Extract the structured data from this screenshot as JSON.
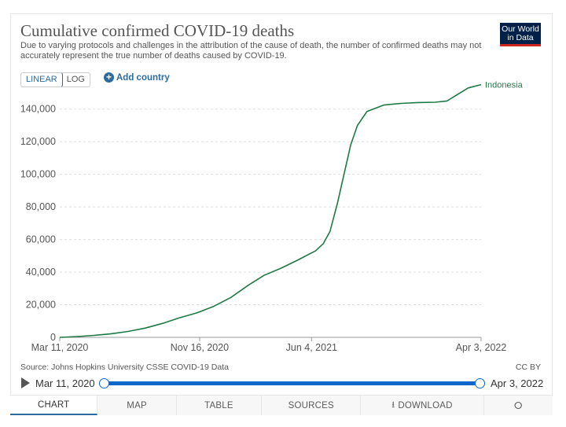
{
  "header": {
    "title": "Cumulative confirmed COVID-19 deaths",
    "subtitle": "Due to varying protocols and challenges in the attribution of the cause of death, the number of confirmed deaths may not accurately represent the true number of deaths caused by COVID-19.",
    "logo_line1": "Our World",
    "logo_line2": "in Data"
  },
  "controls": {
    "linear_label": "LINEAR",
    "log_label": "LOG",
    "add_country_label": "Add country"
  },
  "footer": {
    "source": "Source: Johns Hopkins University CSSE COVID-19 Data",
    "license": "CC BY"
  },
  "timeline": {
    "start": "Mar 11, 2020",
    "end": "Apr 3, 2022"
  },
  "tabs": {
    "chart": "CHART",
    "map": "MAP",
    "table": "TABLE",
    "sources": "SOURCES",
    "download": "DOWNLOAD"
  },
  "colors": {
    "series": "#1e7a45",
    "accent": "#2c6b9e",
    "grid": "#dddddd",
    "logo_bg": "#002147",
    "logo_bar": "#ce261e"
  },
  "chart_data": {
    "type": "line",
    "title": "Cumulative confirmed COVID-19 deaths",
    "x_type": "date",
    "xlim": [
      "2020-03-11",
      "2022-04-03"
    ],
    "x_ticks": [
      {
        "date": "2020-03-11",
        "label": "Mar 11, 2020"
      },
      {
        "date": "2020-11-16",
        "label": "Nov 16, 2020"
      },
      {
        "date": "2021-06-04",
        "label": "Jun 4, 2021"
      },
      {
        "date": "2022-04-03",
        "label": "Apr 3, 2022"
      }
    ],
    "ylim": [
      0,
      150000
    ],
    "y_ticks": [
      0,
      20000,
      40000,
      60000,
      80000,
      100000,
      120000,
      140000
    ],
    "y_tick_labels": [
      "0",
      "20,000",
      "40,000",
      "60,000",
      "80,000",
      "100,000",
      "120,000",
      "140,000"
    ],
    "grid": "horizontal",
    "series": [
      {
        "name": "Indonesia",
        "color": "#1e7a45",
        "points": [
          {
            "x": "2020-03-11",
            "y": 0
          },
          {
            "x": "2020-04-11",
            "y": 500
          },
          {
            "x": "2020-05-11",
            "y": 1200
          },
          {
            "x": "2020-06-11",
            "y": 2200
          },
          {
            "x": "2020-07-11",
            "y": 3600
          },
          {
            "x": "2020-08-11",
            "y": 5700
          },
          {
            "x": "2020-09-11",
            "y": 8600
          },
          {
            "x": "2020-10-11",
            "y": 12000
          },
          {
            "x": "2020-11-11",
            "y": 15000
          },
          {
            "x": "2020-12-11",
            "y": 19000
          },
          {
            "x": "2021-01-11",
            "y": 24500
          },
          {
            "x": "2021-02-11",
            "y": 32000
          },
          {
            "x": "2021-03-11",
            "y": 38000
          },
          {
            "x": "2021-04-11",
            "y": 42500
          },
          {
            "x": "2021-05-11",
            "y": 47500
          },
          {
            "x": "2021-06-11",
            "y": 53000
          },
          {
            "x": "2021-06-25",
            "y": 57500
          },
          {
            "x": "2021-07-07",
            "y": 65000
          },
          {
            "x": "2021-07-20",
            "y": 82000
          },
          {
            "x": "2021-08-01",
            "y": 100000
          },
          {
            "x": "2021-08-13",
            "y": 118000
          },
          {
            "x": "2021-08-25",
            "y": 130000
          },
          {
            "x": "2021-09-11",
            "y": 138500
          },
          {
            "x": "2021-10-11",
            "y": 142500
          },
          {
            "x": "2021-11-11",
            "y": 143500
          },
          {
            "x": "2021-12-11",
            "y": 144000
          },
          {
            "x": "2022-01-11",
            "y": 144200
          },
          {
            "x": "2022-02-01",
            "y": 145000
          },
          {
            "x": "2022-02-20",
            "y": 149000
          },
          {
            "x": "2022-03-11",
            "y": 153000
          },
          {
            "x": "2022-04-03",
            "y": 155000
          }
        ]
      }
    ]
  }
}
